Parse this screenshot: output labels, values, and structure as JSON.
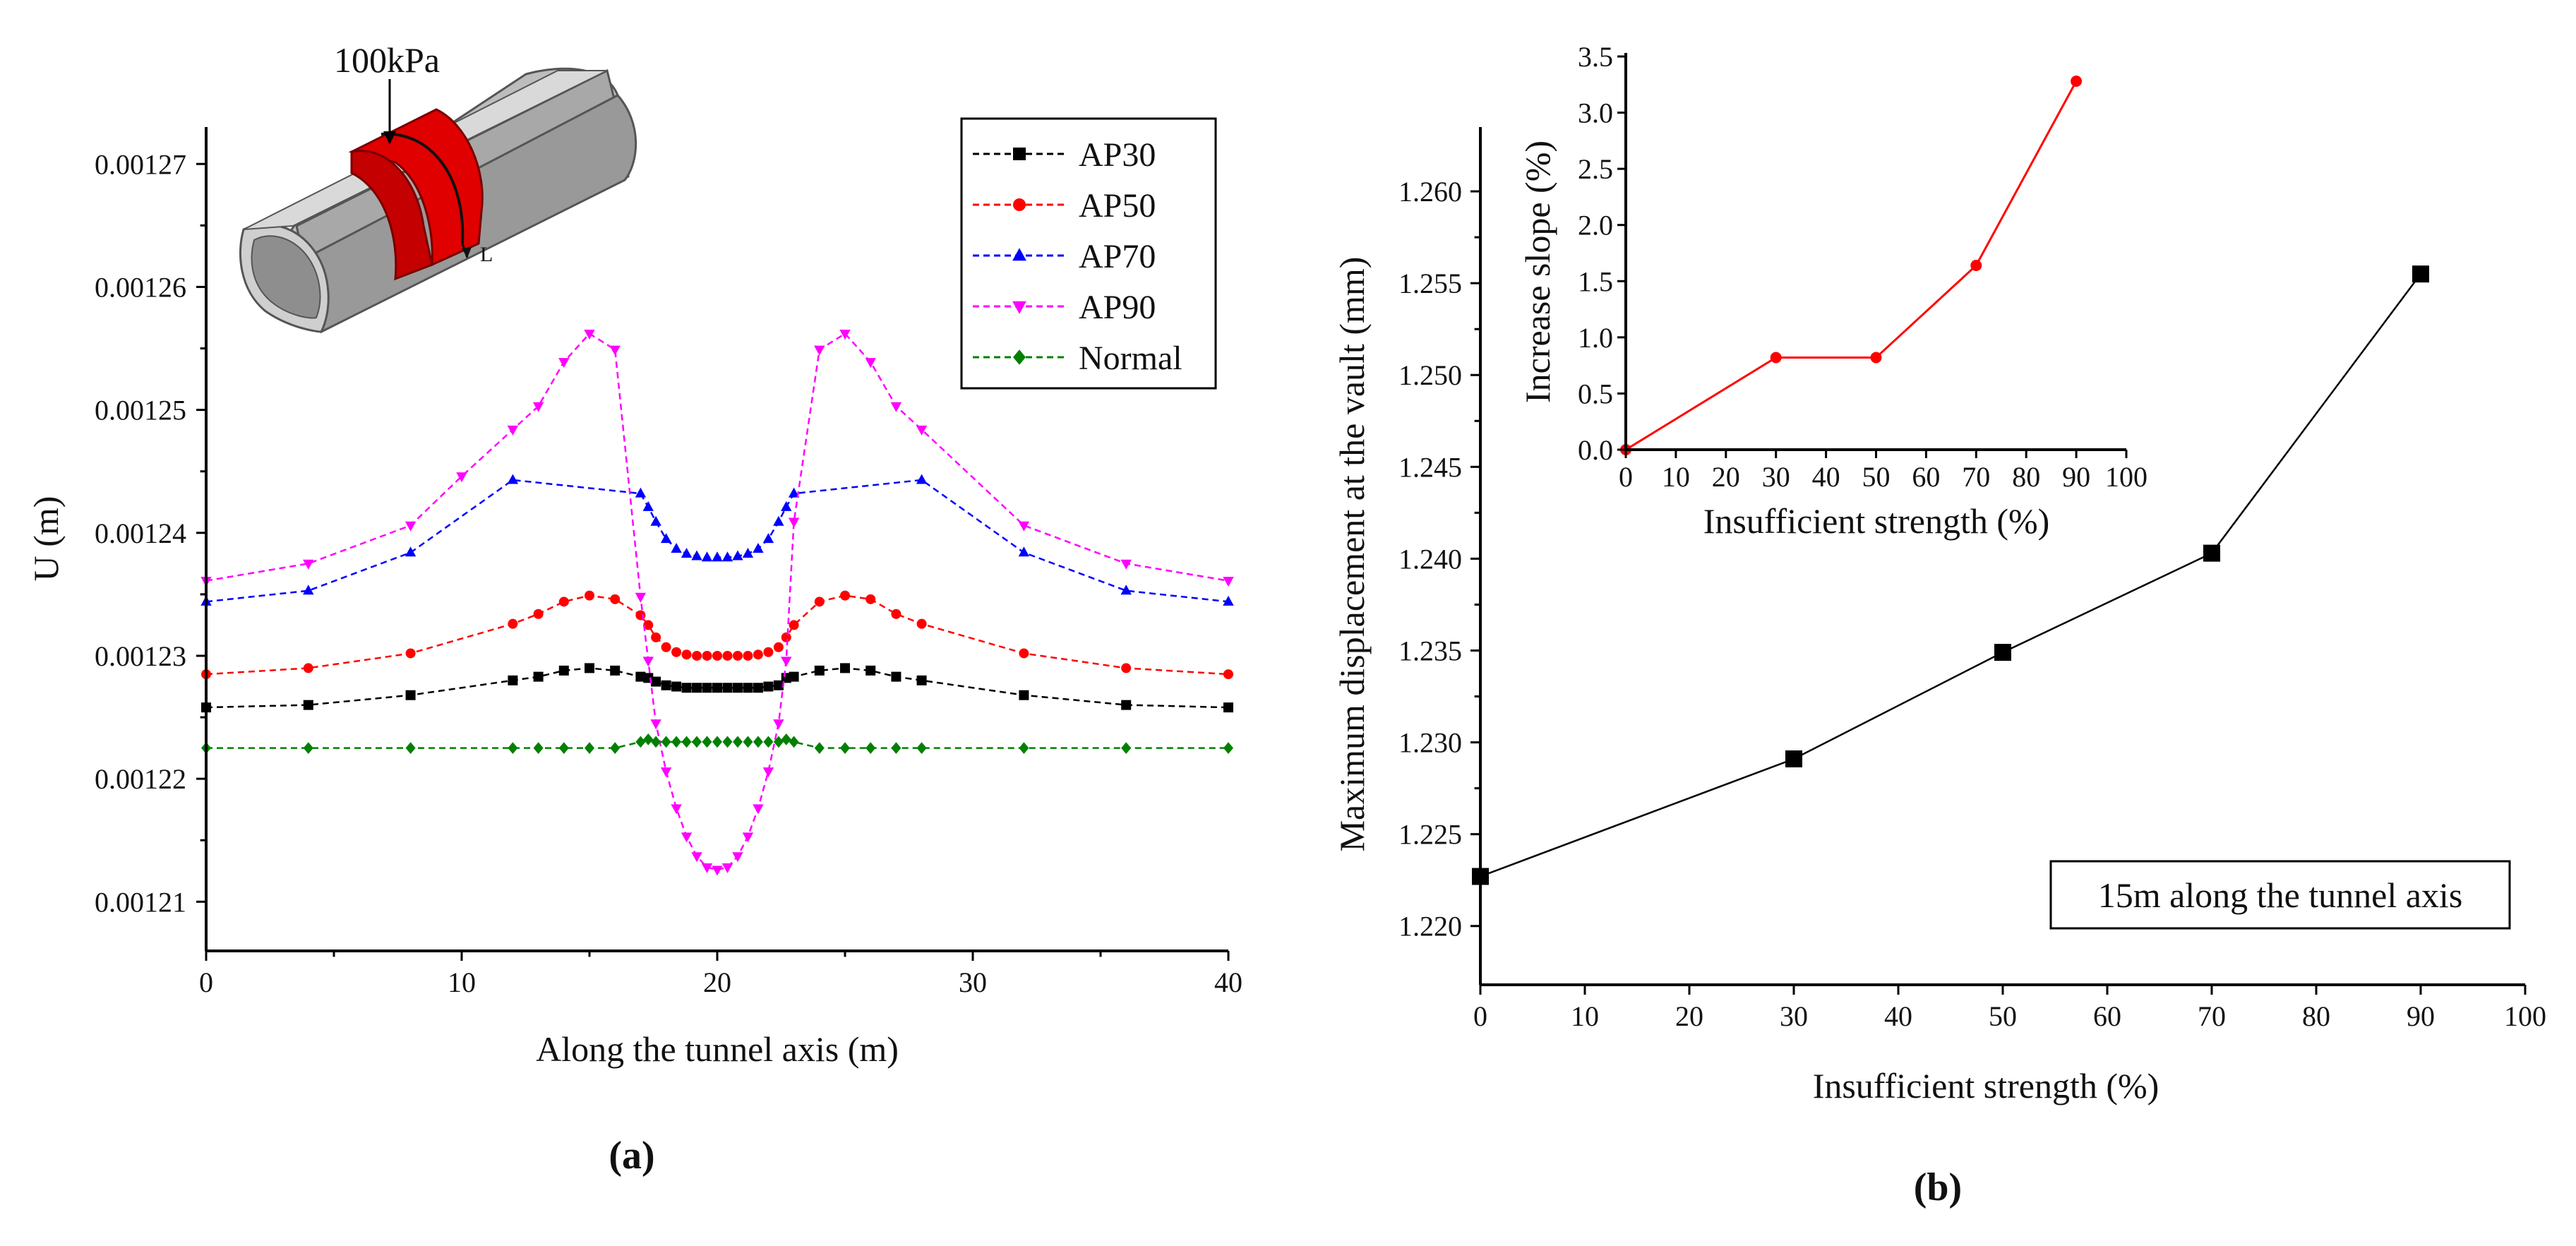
{
  "chart_data": [
    {
      "panel": "a",
      "type": "line",
      "caption": "(a)",
      "title": "",
      "xlabel": "Along the tunnel axis (m)",
      "ylabel": "U (m)",
      "xlim": [
        0,
        40
      ],
      "ylim": [
        0.001206,
        0.001273
      ],
      "xticks": [
        0,
        10,
        20,
        30,
        40
      ],
      "yticks": [
        0.00121,
        0.00122,
        0.00123,
        0.00124,
        0.00125,
        0.00126,
        0.00127
      ],
      "ytick_labels": [
        "0.00121",
        "0.00122",
        "0.00123",
        "0.00124",
        "0.00125",
        "0.00126",
        "0.00127"
      ],
      "legend_position": "top-right",
      "inset_label_load": "100kPa",
      "inset_label_axis": "L",
      "series": [
        {
          "name": "AP30",
          "color": "#000000",
          "marker": "square",
          "x": [
            0,
            4,
            8,
            12,
            13,
            14,
            15,
            16,
            17,
            17.3,
            17.6,
            18,
            18.4,
            18.8,
            19.2,
            19.6,
            20,
            20.4,
            20.8,
            21.2,
            21.6,
            22,
            22.4,
            22.7,
            23,
            24,
            25,
            26,
            27,
            28,
            32,
            36,
            40
          ],
          "y": [
            0.0012258,
            0.001226,
            0.0012268,
            0.001228,
            0.0012283,
            0.0012288,
            0.001229,
            0.0012288,
            0.0012283,
            0.0012282,
            0.0012279,
            0.0012276,
            0.0012275,
            0.0012274,
            0.0012274,
            0.0012274,
            0.0012274,
            0.0012274,
            0.0012274,
            0.0012274,
            0.0012274,
            0.0012275,
            0.0012276,
            0.0012282,
            0.0012283,
            0.0012288,
            0.001229,
            0.0012288,
            0.0012283,
            0.001228,
            0.0012268,
            0.001226,
            0.0012258
          ]
        },
        {
          "name": "AP50",
          "color": "#ff0000",
          "marker": "circle",
          "x": [
            0,
            4,
            8,
            12,
            13,
            14,
            15,
            16,
            17,
            17.3,
            17.6,
            18,
            18.4,
            18.8,
            19.2,
            19.6,
            20,
            20.4,
            20.8,
            21.2,
            21.6,
            22,
            22.4,
            22.7,
            23,
            24,
            25,
            26,
            27,
            28,
            32,
            36,
            40
          ],
          "y": [
            0.0012285,
            0.001229,
            0.0012302,
            0.0012326,
            0.0012334,
            0.0012344,
            0.0012349,
            0.0012346,
            0.0012333,
            0.0012325,
            0.0012315,
            0.0012307,
            0.0012303,
            0.0012301,
            0.00123,
            0.00123,
            0.00123,
            0.00123,
            0.00123,
            0.00123,
            0.0012301,
            0.0012303,
            0.0012307,
            0.0012315,
            0.0012325,
            0.0012344,
            0.0012349,
            0.0012346,
            0.0012334,
            0.0012326,
            0.0012302,
            0.001229,
            0.0012285
          ]
        },
        {
          "name": "AP70",
          "color": "#0000ff",
          "marker": "triangle-up",
          "x": [
            0,
            4,
            8,
            12,
            17,
            17.3,
            17.6,
            18,
            18.4,
            18.8,
            19.2,
            19.6,
            20,
            20.4,
            20.8,
            21.2,
            21.6,
            22,
            22.4,
            22.7,
            23,
            28,
            32,
            36,
            40
          ],
          "y": [
            0.0012344,
            0.0012353,
            0.0012384,
            0.0012443,
            0.0012432,
            0.0012421,
            0.0012409,
            0.0012395,
            0.0012387,
            0.0012383,
            0.0012381,
            0.001238,
            0.001238,
            0.001238,
            0.0012381,
            0.0012383,
            0.0012387,
            0.0012395,
            0.0012409,
            0.0012421,
            0.0012432,
            0.0012443,
            0.0012384,
            0.0012353,
            0.0012344
          ]
        },
        {
          "name": "AP90",
          "color": "#ff00ff",
          "marker": "triangle-down",
          "x": [
            0,
            4,
            8,
            10,
            12,
            13,
            14,
            15,
            16,
            17,
            17.3,
            17.6,
            18,
            18.4,
            18.8,
            19.2,
            19.6,
            20,
            20.4,
            20.8,
            21.2,
            21.6,
            22,
            22.4,
            22.7,
            23,
            24,
            25,
            26,
            27,
            28,
            32,
            36,
            40
          ],
          "y": [
            0.0012361,
            0.0012375,
            0.0012406,
            0.0012446,
            0.0012484,
            0.0012503,
            0.0012539,
            0.0012562,
            0.0012549,
            0.0012348,
            0.0012296,
            0.0012245,
            0.0012206,
            0.0012176,
            0.0012153,
            0.0012137,
            0.0012128,
            0.0012126,
            0.0012128,
            0.0012137,
            0.0012153,
            0.0012176,
            0.0012206,
            0.0012245,
            0.0012296,
            0.0012409,
            0.0012549,
            0.0012562,
            0.0012539,
            0.0012503,
            0.0012484,
            0.0012406,
            0.0012375,
            0.0012361
          ]
        },
        {
          "name": "Normal",
          "color": "#008000",
          "marker": "diamond",
          "x": [
            0,
            4,
            8,
            12,
            13,
            14,
            15,
            16,
            17,
            17.3,
            17.6,
            18,
            18.4,
            18.8,
            19.2,
            19.6,
            20,
            20.4,
            20.8,
            21.2,
            21.6,
            22,
            22.4,
            22.7,
            23,
            24,
            25,
            26,
            27,
            28,
            32,
            36,
            40
          ],
          "y": [
            0.0012225,
            0.0012225,
            0.0012225,
            0.0012225,
            0.0012225,
            0.0012225,
            0.0012225,
            0.0012225,
            0.001223,
            0.0012232,
            0.001223,
            0.001223,
            0.001223,
            0.001223,
            0.001223,
            0.001223,
            0.001223,
            0.001223,
            0.001223,
            0.001223,
            0.001223,
            0.001223,
            0.001223,
            0.0012232,
            0.001223,
            0.0012225,
            0.0012225,
            0.0012225,
            0.0012225,
            0.0012225,
            0.0012225,
            0.0012225,
            0.0012225
          ]
        }
      ]
    },
    {
      "panel": "b",
      "type": "line",
      "caption": "(b)",
      "title": "",
      "xlabel": "Insufficient strength (%)",
      "ylabel": "Maximum displacement at the vault (mm)",
      "xlim": [
        0,
        100
      ],
      "ylim": [
        1.2168,
        1.2635
      ],
      "xticks": [
        0,
        10,
        20,
        30,
        40,
        50,
        60,
        70,
        80,
        90,
        100
      ],
      "yticks": [
        1.22,
        1.225,
        1.23,
        1.235,
        1.24,
        1.245,
        1.25,
        1.255,
        1.26
      ],
      "ytick_labels": [
        "1.220",
        "1.225",
        "1.230",
        "1.235",
        "1.240",
        "1.245",
        "1.250",
        "1.255",
        "1.260"
      ],
      "annotation": "15m along the tunnel axis",
      "series": [
        {
          "name": "Maximum displacement",
          "color": "#000000",
          "marker": "square",
          "x": [
            0,
            30,
            50,
            70,
            90
          ],
          "y": [
            1.2227,
            1.2291,
            1.2349,
            1.2403,
            1.2555
          ]
        }
      ]
    },
    {
      "panel": "b-inset",
      "type": "line",
      "title": "",
      "xlabel": "Insufficient strength (%)",
      "ylabel": "Increase slope (%)",
      "xlim": [
        0,
        100
      ],
      "ylim": [
        0,
        3.5
      ],
      "xticks": [
        0,
        10,
        20,
        30,
        40,
        50,
        60,
        70,
        80,
        90,
        100
      ],
      "yticks": [
        0,
        0.5,
        1,
        1.5,
        2,
        2.5,
        3,
        3.5
      ],
      "ytick_labels": [
        "0.0",
        "0.5",
        "1.0",
        "1.5",
        "2.0",
        "2.5",
        "3.0",
        "3.5"
      ],
      "series": [
        {
          "name": "Increase slope",
          "color": "#ff0000",
          "marker": "circle",
          "x": [
            0,
            30,
            50,
            70,
            90
          ],
          "y": [
            0,
            0.82,
            0.82,
            1.64,
            3.28
          ]
        }
      ]
    }
  ]
}
